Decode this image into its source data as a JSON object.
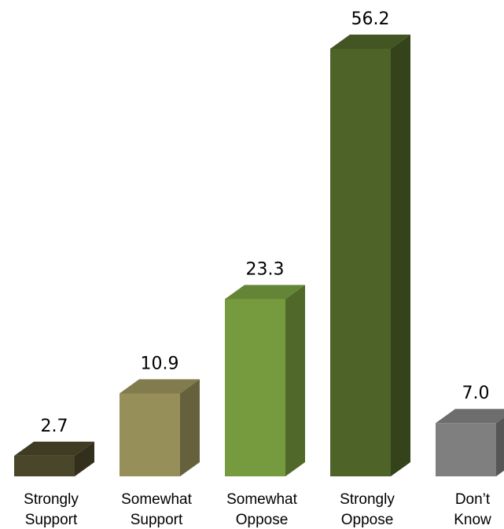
{
  "chart_data": {
    "type": "bar",
    "style": "3d",
    "title": "",
    "xlabel": "",
    "ylabel": "",
    "categories": [
      [
        "Strongly",
        "Support"
      ],
      [
        "Somewhat",
        "Support"
      ],
      [
        "Somewhat",
        "Oppose"
      ],
      [
        "Strongly",
        "Oppose"
      ],
      [
        "Don’t",
        "Know"
      ]
    ],
    "values": [
      2.7,
      10.9,
      23.3,
      56.2,
      7.0
    ],
    "value_labels": [
      "2.7",
      "10.9",
      "23.3",
      "56.2",
      "7.0"
    ],
    "colors": [
      "#4a4629",
      "#968f59",
      "#769b3f",
      "#4e6327",
      "#7f7f7f"
    ],
    "ylim": [
      0,
      56.2
    ],
    "grid": false,
    "legend": "none"
  }
}
